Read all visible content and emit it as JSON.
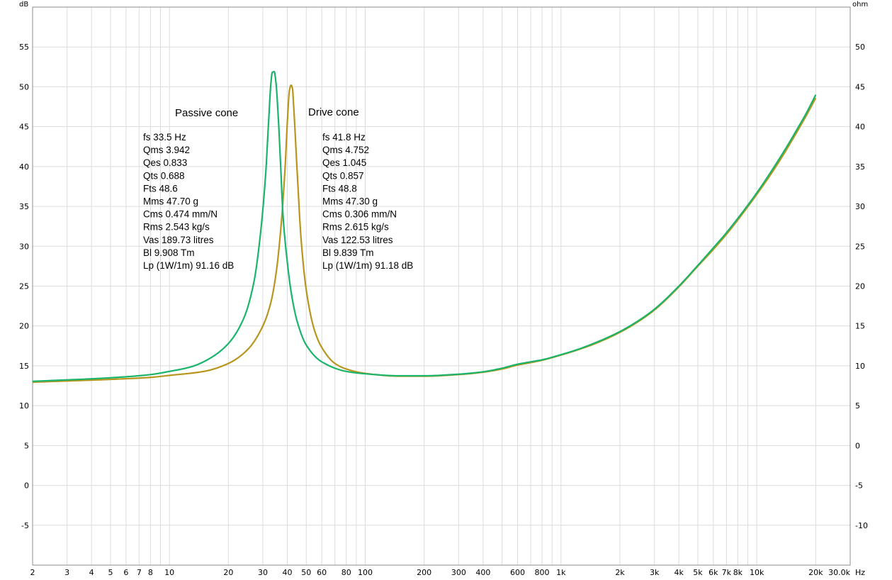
{
  "chart_data": {
    "type": "line",
    "x_scale": "log",
    "x_unit": "Hz",
    "y_left_unit": "dB",
    "y_right_unit": "ohm",
    "xlim": [
      2,
      30000
    ],
    "ylim_left": [
      -10,
      60
    ],
    "ylim_right": [
      -15,
      55
    ],
    "grid": true,
    "x_ticks": [
      {
        "v": 2,
        "label": "2"
      },
      {
        "v": 3,
        "label": "3"
      },
      {
        "v": 4,
        "label": "4"
      },
      {
        "v": 5,
        "label": "5"
      },
      {
        "v": 6,
        "label": "6"
      },
      {
        "v": 7,
        "label": "7"
      },
      {
        "v": 8,
        "label": "8"
      },
      {
        "v": 10,
        "label": "10"
      },
      {
        "v": 20,
        "label": "20"
      },
      {
        "v": 30,
        "label": "30"
      },
      {
        "v": 40,
        "label": "40"
      },
      {
        "v": 50,
        "label": "50"
      },
      {
        "v": 60,
        "label": "60"
      },
      {
        "v": 80,
        "label": "80"
      },
      {
        "v": 100,
        "label": "100"
      },
      {
        "v": 200,
        "label": "200"
      },
      {
        "v": 300,
        "label": "300"
      },
      {
        "v": 400,
        "label": "400"
      },
      {
        "v": 600,
        "label": "600"
      },
      {
        "v": 800,
        "label": "800"
      },
      {
        "v": 1000,
        "label": "1k"
      },
      {
        "v": 2000,
        "label": "2k"
      },
      {
        "v": 3000,
        "label": "3k"
      },
      {
        "v": 4000,
        "label": "4k"
      },
      {
        "v": 5000,
        "label": "5k"
      },
      {
        "v": 6000,
        "label": "6k"
      },
      {
        "v": 7000,
        "label": "7k"
      },
      {
        "v": 8000,
        "label": "8k"
      },
      {
        "v": 10000,
        "label": "10k"
      },
      {
        "v": 20000,
        "label": "20k"
      },
      {
        "v": 30000,
        "label": "30.0k"
      }
    ],
    "y_left_ticks": [
      55,
      50,
      45,
      40,
      35,
      30,
      25,
      20,
      15,
      10,
      5,
      0,
      -5
    ],
    "y_right_ticks": [
      50,
      45,
      40,
      35,
      30,
      25,
      20,
      15,
      10,
      5,
      0,
      -5,
      -10
    ],
    "series": [
      {
        "color": "#1ab46a",
        "points": [
          [
            2,
            13.05
          ],
          [
            5,
            13.5
          ],
          [
            8,
            13.9
          ],
          [
            10,
            14.3
          ],
          [
            13,
            14.9
          ],
          [
            16,
            15.9
          ],
          [
            20,
            17.8
          ],
          [
            24,
            21.0
          ],
          [
            27,
            25.5
          ],
          [
            29,
            31.0
          ],
          [
            31,
            39.0
          ],
          [
            32,
            45.0
          ],
          [
            33,
            50.5
          ],
          [
            33.5,
            51.8
          ],
          [
            34.3,
            51.9
          ],
          [
            35,
            50.5
          ],
          [
            36,
            46.0
          ],
          [
            37,
            40.0
          ],
          [
            38,
            34.0
          ],
          [
            40,
            28.0
          ],
          [
            42,
            24.0
          ],
          [
            45,
            20.5
          ],
          [
            50,
            17.6
          ],
          [
            60,
            15.5
          ],
          [
            80,
            14.3
          ],
          [
            100,
            14.0
          ],
          [
            150,
            13.75
          ],
          [
            200,
            13.75
          ],
          [
            300,
            13.95
          ],
          [
            400,
            14.25
          ],
          [
            500,
            14.7
          ],
          [
            600,
            15.2
          ],
          [
            700,
            15.5
          ],
          [
            800,
            15.75
          ],
          [
            1000,
            16.4
          ],
          [
            1200,
            17.0
          ],
          [
            1500,
            17.9
          ],
          [
            2000,
            19.3
          ],
          [
            2500,
            20.7
          ],
          [
            3000,
            22.1
          ],
          [
            4000,
            25.0
          ],
          [
            5000,
            27.6
          ],
          [
            6000,
            29.8
          ],
          [
            7000,
            31.7
          ],
          [
            8000,
            33.5
          ],
          [
            10000,
            36.7
          ],
          [
            12000,
            39.6
          ],
          [
            14000,
            42.2
          ],
          [
            16000,
            44.6
          ],
          [
            18000,
            46.8
          ],
          [
            20000,
            49.0
          ]
        ]
      },
      {
        "color": "#b8961e",
        "points": [
          [
            2,
            12.95
          ],
          [
            5,
            13.3
          ],
          [
            8,
            13.55
          ],
          [
            10,
            13.8
          ],
          [
            15,
            14.3
          ],
          [
            20,
            15.3
          ],
          [
            25,
            17.0
          ],
          [
            30,
            20.0
          ],
          [
            33,
            23.0
          ],
          [
            35,
            26.5
          ],
          [
            37,
            32.0
          ],
          [
            39,
            40.0
          ],
          [
            40,
            45.5
          ],
          [
            41,
            49.5
          ],
          [
            41.8,
            50.2
          ],
          [
            42.5,
            49.8
          ],
          [
            43,
            48.0
          ],
          [
            45,
            39.0
          ],
          [
            47,
            31.0
          ],
          [
            50,
            24.5
          ],
          [
            55,
            19.5
          ],
          [
            60,
            17.3
          ],
          [
            70,
            15.3
          ],
          [
            80,
            14.6
          ],
          [
            100,
            14.05
          ],
          [
            150,
            13.7
          ],
          [
            200,
            13.7
          ],
          [
            300,
            13.9
          ],
          [
            400,
            14.2
          ],
          [
            500,
            14.6
          ],
          [
            600,
            15.1
          ],
          [
            700,
            15.4
          ],
          [
            800,
            15.7
          ],
          [
            1000,
            16.35
          ],
          [
            1200,
            16.95
          ],
          [
            1500,
            17.8
          ],
          [
            2000,
            19.2
          ],
          [
            2500,
            20.6
          ],
          [
            3000,
            22.0
          ],
          [
            4000,
            24.9
          ],
          [
            5000,
            27.5
          ],
          [
            6000,
            29.6
          ],
          [
            7000,
            31.5
          ],
          [
            8000,
            33.3
          ],
          [
            10000,
            36.5
          ],
          [
            12000,
            39.3
          ],
          [
            14000,
            41.9
          ],
          [
            16000,
            44.3
          ],
          [
            18000,
            46.5
          ],
          [
            20000,
            48.6
          ]
        ]
      }
    ],
    "annotations": {
      "passive": {
        "title": "Passive cone",
        "lines": [
          "fs 33.5 Hz",
          "Qms 3.942",
          "Qes 0.833",
          "Qts 0.688",
          "Fts 48.6",
          "Mms 47.70 g",
          "Cms 0.474 mm/N",
          "Rms 2.543 kg/s",
          "Vas 189.73 litres",
          "Bl 9.908 Tm",
          "Lp (1W/1m) 91.16 dB"
        ]
      },
      "drive": {
        "title": "Drive cone",
        "lines": [
          "fs 41.8 Hz",
          "Qms 4.752",
          "Qes 1.045",
          "Qts 0.857",
          "Fts 48.8",
          "Mms 47.30 g",
          "Cms 0.306 mm/N",
          "Rms 2.615 kg/s",
          "Vas 122.53 litres",
          "Bl 9.839 Tm",
          "Lp (1W/1m) 91.18 dB"
        ]
      }
    }
  }
}
